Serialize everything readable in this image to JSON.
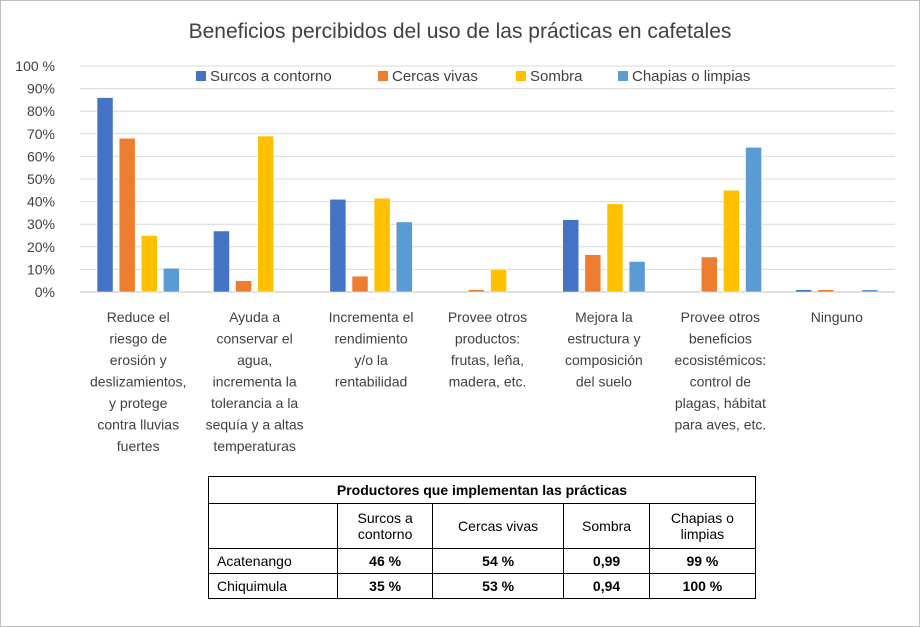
{
  "chart_data": {
    "type": "bar",
    "title": "Beneficios percibidos del uso de las prácticas en cafetales",
    "ylim": [
      0,
      100
    ],
    "yticks": [
      "0%",
      "10%",
      "20%",
      "30%",
      "40%",
      "50%",
      "60%",
      "70%",
      "80%",
      "90%",
      "100 %"
    ],
    "legend_position": "top",
    "grid": true,
    "categories": [
      [
        "Reduce el",
        "riesgo de",
        "erosión y",
        "deslizamientos,",
        "y protege",
        "contra lluvias",
        "fuertes"
      ],
      [
        "Ayuda a",
        "conservar el",
        "agua,",
        "incrementa la",
        "tolerancia a la",
        "sequía y a altas",
        "temperaturas"
      ],
      [
        "Incrementa el",
        "rendimiento",
        "y/o la",
        "rentabilidad"
      ],
      [
        "Provee otros",
        "productos:",
        "frutas, leña,",
        "madera, etc."
      ],
      [
        "Mejora la",
        "estructura  y",
        "composición",
        "del suelo"
      ],
      [
        "Provee otros",
        "beneficios",
        "ecosistémicos:",
        "control de",
        "plagas, hábitat",
        "para aves, etc."
      ],
      [
        "Ninguno"
      ]
    ],
    "series": [
      {
        "name": "Surcos a contorno",
        "color": "#4472C4",
        "values": [
          86,
          27,
          41,
          0,
          32,
          0,
          1
        ]
      },
      {
        "name": "Cercas vivas",
        "color": "#ED7D31",
        "values": [
          68,
          5,
          7,
          1,
          16.5,
          15.5,
          1
        ]
      },
      {
        "name": "Sombra",
        "color": "#FFC000",
        "values": [
          25,
          69,
          41.5,
          10,
          39,
          45,
          0
        ]
      },
      {
        "name": "Chapias o limpias",
        "color": "#5B9BD5",
        "values": [
          10.5,
          0,
          31,
          0,
          13.5,
          64,
          1
        ]
      }
    ]
  },
  "table": {
    "caption": "Productores que implementan las prácticas",
    "columns": [
      [
        "Surcos a",
        "contorno"
      ],
      [
        "Cercas vivas"
      ],
      [
        "Sombra"
      ],
      [
        "Chapias o",
        "limpias"
      ]
    ],
    "rows": [
      {
        "label": "Acatenango",
        "values": [
          "46 %",
          "54 %",
          "0,99",
          "99 %"
        ]
      },
      {
        "label": "Chiquimula",
        "values": [
          "35 %",
          "53 %",
          "0,94",
          "100 %"
        ]
      }
    ]
  }
}
